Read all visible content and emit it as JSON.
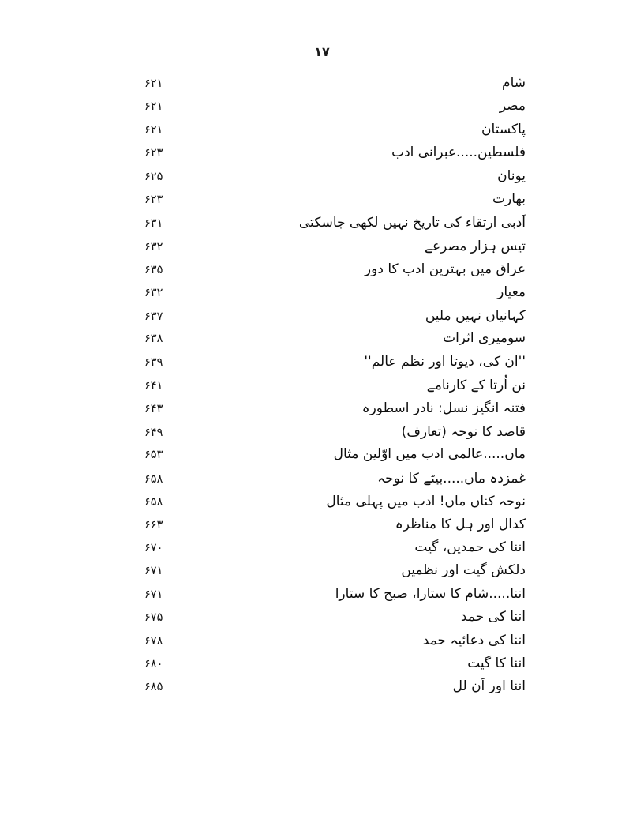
{
  "page": {
    "number_top": "۱۷"
  },
  "toc": {
    "items": [
      {
        "title": "شام",
        "page": "۶۲۱"
      },
      {
        "title": "مصر",
        "page": "۶۲۱"
      },
      {
        "title": "پاکستان",
        "page": "۶۲۱"
      },
      {
        "title": "فلسطین.....عبرانی ادب",
        "page": "۶۲۳"
      },
      {
        "title": "یونان",
        "page": "۶۲۵"
      },
      {
        "title": "بھارت",
        "page": "۶۲۳"
      },
      {
        "title": "اَدبی ارتقاء کی تاریخ نہیں لکھی جاسکتی",
        "page": "۶۳۱"
      },
      {
        "title": "تیس ہزار مصرعے",
        "page": "۶۳۲"
      },
      {
        "title": "عراق میں بہترین ادب کا دور",
        "page": "۶۳۵"
      },
      {
        "title": "معیار",
        "page": "۶۳۲"
      },
      {
        "title": "کہانیاں نہیں ملیں",
        "page": "۶۳۷"
      },
      {
        "title": "سومیری اثرات",
        "page": "۶۳۸"
      },
      {
        "title": "''ان کی، دیوتا اور نظم عالم''",
        "page": "۶۳۹"
      },
      {
        "title": "نن اُرتا کے کارنامے",
        "page": "۶۴۱"
      },
      {
        "title": "فتنہ انگیز نسل: نادر اسطورہ",
        "page": "۶۴۳"
      },
      {
        "title": "قاصد کا نوحہ (تعارف)",
        "page": "۶۴۹"
      },
      {
        "title": "ماں.....عالمی ادب میں اوّلین مثال",
        "page": "۶۵۳"
      },
      {
        "title": "غمزدہ ماں.....بیٹے کا نوحہ",
        "page": "۶۵۸"
      },
      {
        "title": "نوحہ کناں ماں! ادب میں پہلی مثال",
        "page": "۶۵۸"
      },
      {
        "title": "کدال اور ہل کا مناظرہ",
        "page": "۶۶۳"
      },
      {
        "title": "اننا کی حمدیں، گیت",
        "page": "۶۷۰"
      },
      {
        "title": "دلکش گیت اور نظمیں",
        "page": "۶۷۱"
      },
      {
        "title": "اننا.....شام کا ستارا، صبح کا ستارا",
        "page": "۶۷۱"
      },
      {
        "title": "اننا کی حمد",
        "page": "۶۷۵"
      },
      {
        "title": "اننا کی دعائیہ حمد",
        "page": "۶۷۸"
      },
      {
        "title": "اننا کا گیت",
        "page": "۶۸۰"
      },
      {
        "title": "اننا اور اَن لل",
        "page": "۶۸۵"
      }
    ]
  }
}
